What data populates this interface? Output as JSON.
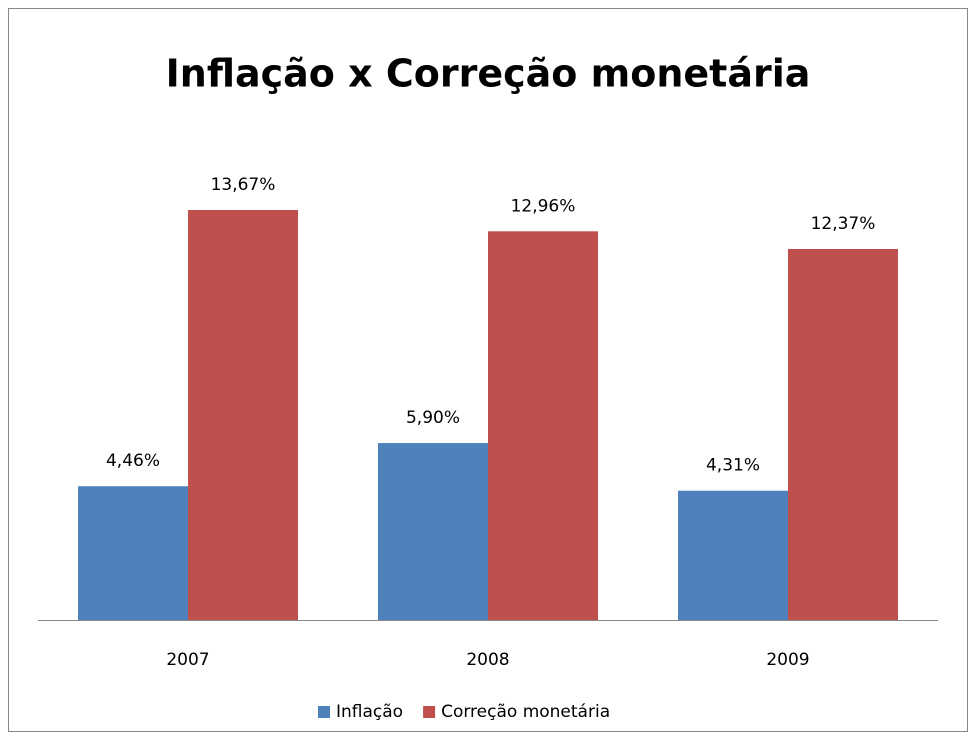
{
  "chart_data": {
    "type": "bar",
    "title": "Inflação x Correção monetária",
    "categories": [
      "2007",
      "2008",
      "2009"
    ],
    "series": [
      {
        "name": "Inflação",
        "color": "#4f81bd",
        "values": [
          4.46,
          5.9,
          4.31
        ],
        "value_labels": [
          "4,46%",
          "5,90%",
          "4,31%"
        ]
      },
      {
        "name": "Correção monetária",
        "color": "#c0504d",
        "values": [
          13.67,
          12.96,
          12.37
        ],
        "value_labels": [
          "13,67%",
          "12,96%",
          "12,37%"
        ]
      }
    ],
    "legend": "bottom"
  }
}
